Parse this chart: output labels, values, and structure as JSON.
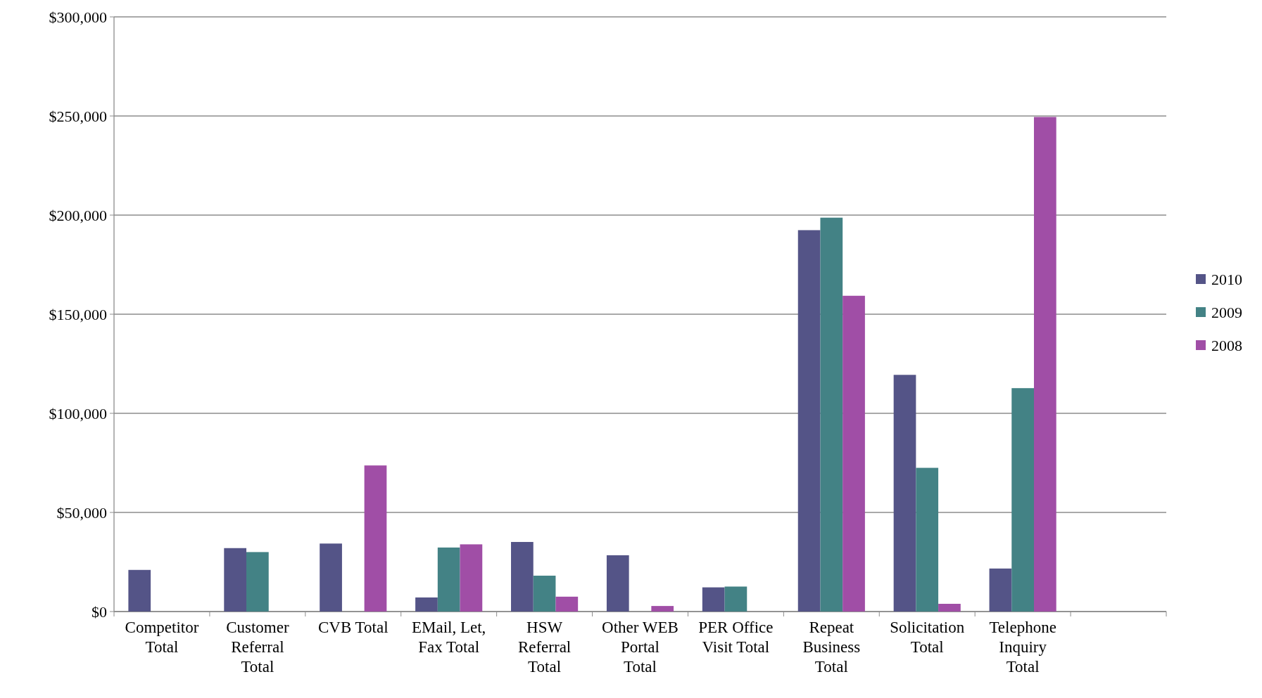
{
  "chart_data": {
    "type": "bar",
    "categories": [
      "Competitor Total",
      "Customer Referral Total",
      "CVB Total",
      "EMail, Let, Fax Total",
      "HSW Referral Total",
      "Other WEB Portal Total",
      "PER Office Visit Total",
      "Repeat Business Total",
      "Solicitation Total",
      "Telephone Inquiry Total",
      null
    ],
    "series": [
      {
        "name": "2010",
        "color": "#545487",
        "values": [
          21000,
          32000,
          34300,
          7100,
          35100,
          28400,
          12200,
          192400,
          119400,
          21700,
          null
        ]
      },
      {
        "name": "2009",
        "color": "#438285",
        "values": [
          null,
          30000,
          null,
          32300,
          18100,
          null,
          12600,
          198700,
          72500,
          112700,
          null
        ]
      },
      {
        "name": "2008",
        "color": "#a04ea6",
        "values": [
          null,
          null,
          73700,
          33900,
          7500,
          2800,
          null,
          159300,
          3900,
          249500,
          null
        ]
      }
    ],
    "ylim": [
      0,
      300000
    ],
    "yticks": [
      {
        "value": 0,
        "label": "$0"
      },
      {
        "value": 50000,
        "label": "$50,000"
      },
      {
        "value": 100000,
        "label": "$100,000"
      },
      {
        "value": 150000,
        "label": "$150,000"
      },
      {
        "value": 200000,
        "label": "$200,000"
      },
      {
        "value": 250000,
        "label": "$250,000"
      },
      {
        "value": 300000,
        "label": "$300,000"
      }
    ],
    "grid": "y",
    "legend": "right"
  }
}
